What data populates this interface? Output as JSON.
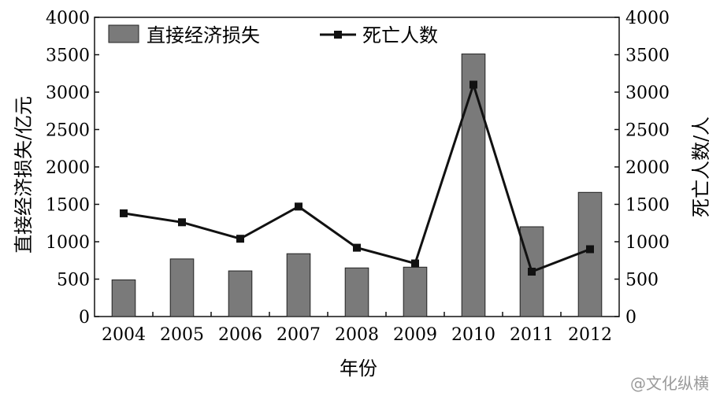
{
  "chart_data": {
    "type": "bar+line",
    "categories": [
      "2004",
      "2005",
      "2006",
      "2007",
      "2008",
      "2009",
      "2010",
      "2011",
      "2012"
    ],
    "xlabel": "年份",
    "y_left": {
      "label": "直接经济损失/亿元",
      "min": 0,
      "max": 4000,
      "ticks": [
        0,
        500,
        1000,
        1500,
        2000,
        2500,
        3000,
        3500,
        4000
      ]
    },
    "y_right": {
      "label": "死亡人数/人",
      "min": 0,
      "max": 4000,
      "ticks": [
        0,
        500,
        1000,
        1500,
        2000,
        2500,
        3000,
        3500,
        4000
      ]
    },
    "series": [
      {
        "name": "直接经济损失",
        "kind": "bar",
        "axis": "left",
        "color": "#7a7a7a",
        "values": [
          490,
          770,
          610,
          840,
          650,
          660,
          3510,
          1200,
          1660
        ]
      },
      {
        "name": "死亡人数",
        "kind": "line",
        "axis": "right",
        "color": "#111111",
        "values": [
          1380,
          1260,
          1040,
          1470,
          920,
          710,
          3100,
          600,
          900
        ]
      }
    ],
    "legend_position": "top-left",
    "grid": false
  },
  "watermark": "@文化纵横"
}
